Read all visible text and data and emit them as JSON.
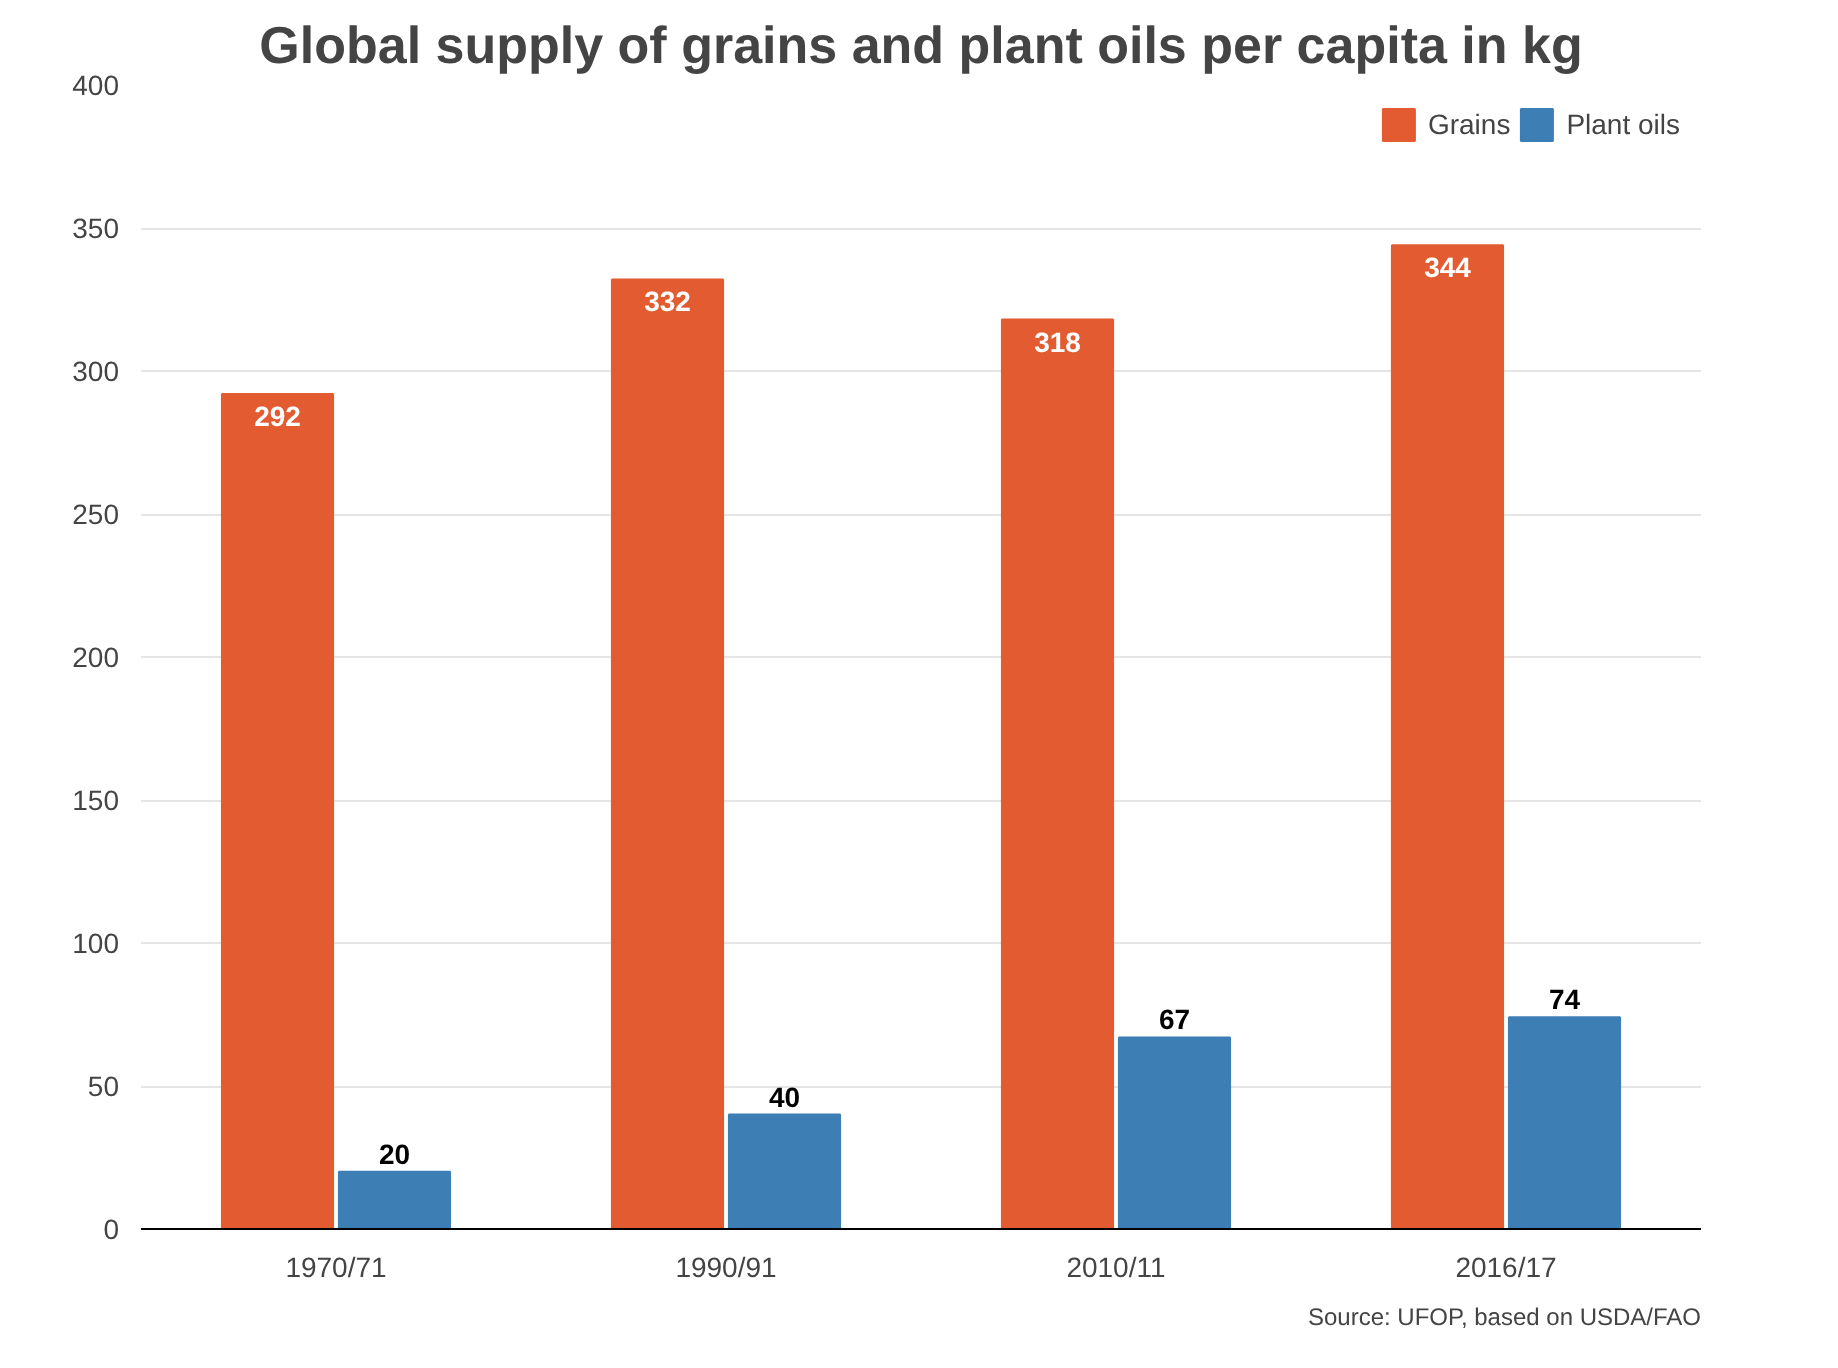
{
  "chart_data": {
    "type": "bar",
    "title": "Global supply of grains and plant oils per capita in kg",
    "categories": [
      "1970/71",
      "1990/91",
      "2010/11",
      "2016/17"
    ],
    "series": [
      {
        "name": "Grains",
        "color": "#e35b30",
        "values": [
          292,
          332,
          318,
          344
        ]
      },
      {
        "name": "Plant oils",
        "color": "#3d7fb5",
        "values": [
          20,
          40,
          67,
          74
        ]
      }
    ],
    "ylim": [
      0,
      400
    ],
    "yticks": [
      0,
      50,
      100,
      150,
      200,
      250,
      300,
      350,
      400
    ],
    "grid": "y",
    "legend": "top right",
    "data_labels": true,
    "annotations": [
      "Source: UFOP, based on USDA/FAO"
    ]
  }
}
